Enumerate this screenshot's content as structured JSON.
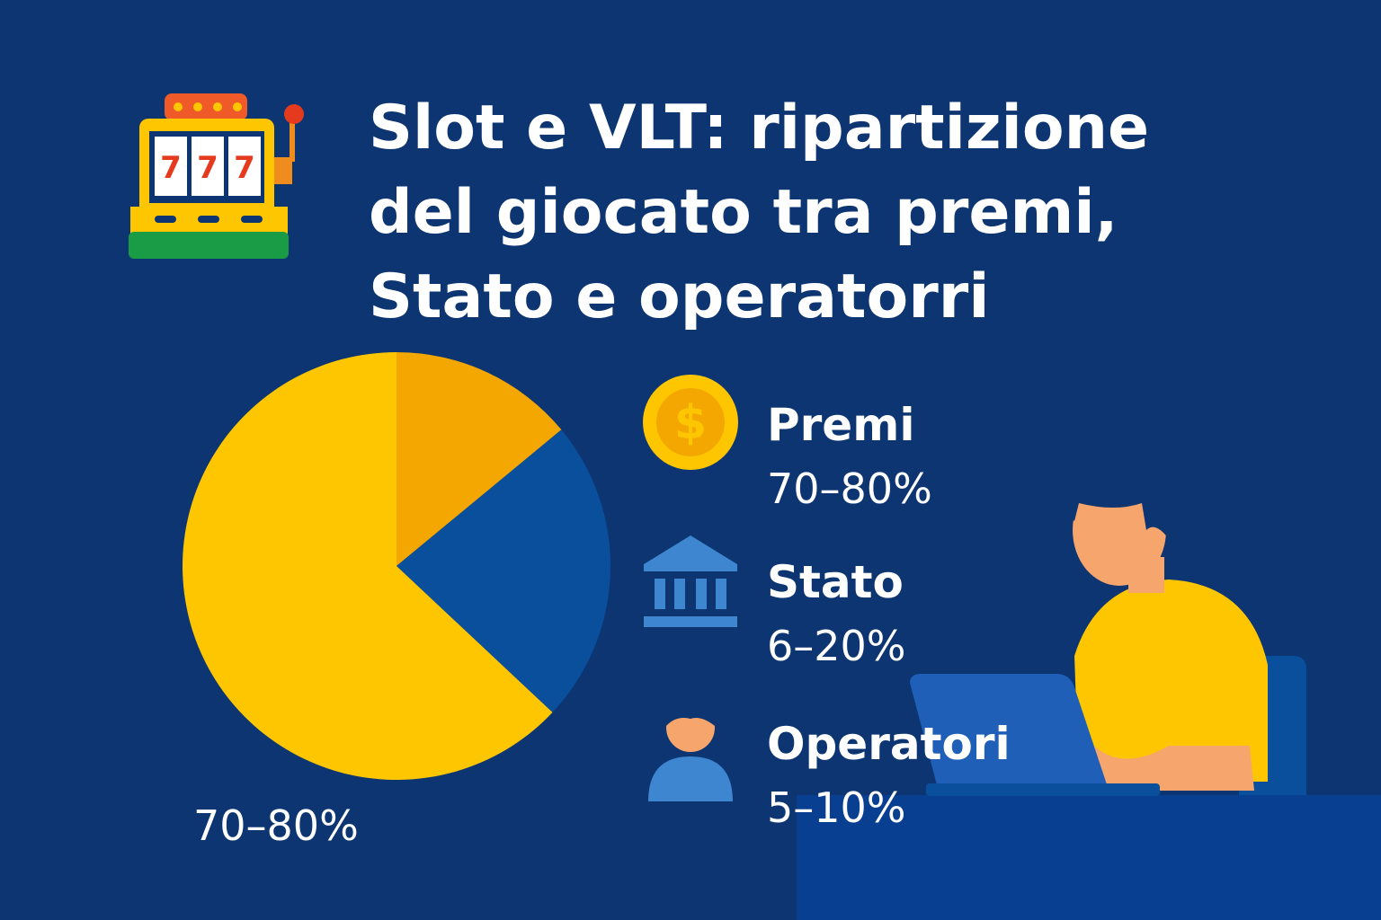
{
  "chart_data": {
    "type": "pie",
    "title": [
      "Slot e VLT: ripartizione",
      "del giocato tra premi,",
      "Stato e operatorri"
    ],
    "values": [
      14,
      23,
      63
    ],
    "colors": [
      "#f4a700",
      "#0a4f9c",
      "#fdc600"
    ],
    "slice_label": "70–80%",
    "legend": [
      {
        "label": "Premi",
        "range": "70–80%"
      },
      {
        "label": "Stato",
        "range": "6–20%"
      },
      {
        "label": "Operatori",
        "range": "5–10%"
      }
    ]
  }
}
